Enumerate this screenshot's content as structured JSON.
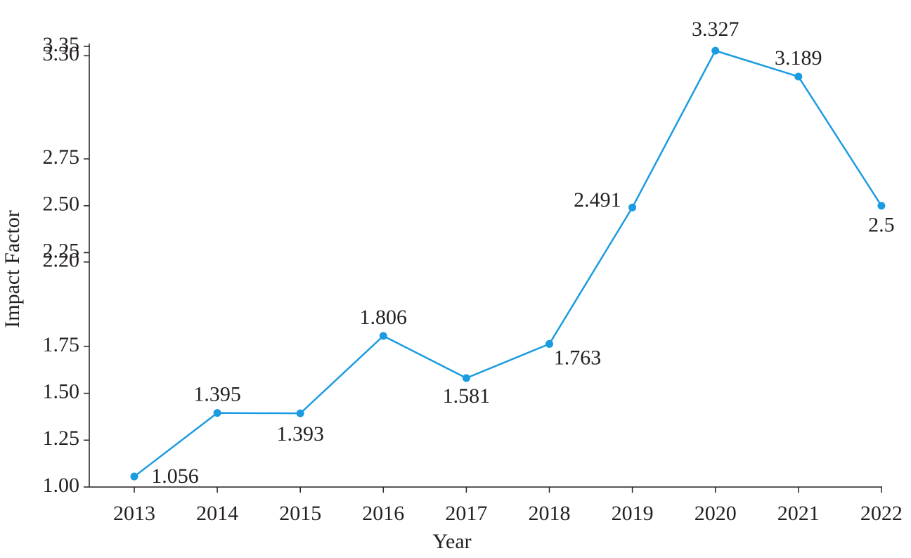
{
  "chart_data": {
    "type": "line",
    "x_label": "Year",
    "y_label": "Impact Factor",
    "categories": [
      "2013",
      "2014",
      "2015",
      "2016",
      "2017",
      "2018",
      "2019",
      "2020",
      "2021",
      "2022"
    ],
    "series": [
      {
        "name": "Impact Factor",
        "color": "#1b9ce0",
        "values": [
          1.056,
          1.395,
          1.393,
          1.806,
          1.581,
          1.763,
          2.491,
          3.327,
          3.189,
          2.5
        ]
      }
    ],
    "ylim": [
      1.0,
      3.35
    ],
    "yticks": [
      {
        "value": 1.0,
        "label": "1.00"
      },
      {
        "value": 1.25,
        "label": "1.25"
      },
      {
        "value": 1.5,
        "label": "1.50"
      },
      {
        "value": 1.75,
        "label": "1.75"
      },
      {
        "value": 2.2,
        "label": "2.20"
      },
      {
        "value": 2.25,
        "label": "2.25"
      },
      {
        "value": 2.5,
        "label": "2.50"
      },
      {
        "value": 2.75,
        "label": "2.75"
      },
      {
        "value": 3.3,
        "label": "3.30"
      },
      {
        "value": 3.35,
        "label": "3.35"
      }
    ]
  }
}
